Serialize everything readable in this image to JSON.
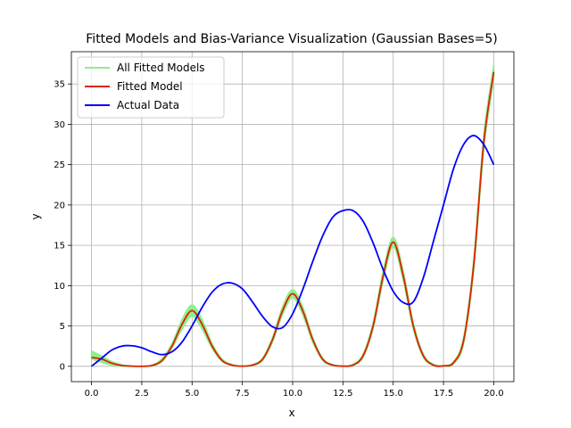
{
  "chart_data": {
    "type": "line",
    "title": "Fitted Models and Bias-Variance Visualization (Gaussian Bases=5)",
    "xlabel": "x",
    "ylabel": "y",
    "xlim": [
      -1.0,
      21.0
    ],
    "ylim": [
      -1.9,
      39.0
    ],
    "xticks": [
      0.0,
      2.5,
      5.0,
      7.5,
      10.0,
      12.5,
      15.0,
      17.5,
      20.0
    ],
    "xtick_labels": [
      "0.0",
      "2.5",
      "5.0",
      "7.5",
      "10.0",
      "12.5",
      "15.0",
      "17.5",
      "20.0"
    ],
    "yticks": [
      0,
      5,
      10,
      15,
      20,
      25,
      30,
      35
    ],
    "ytick_labels": [
      "0",
      "5",
      "10",
      "15",
      "20",
      "25",
      "30",
      "35"
    ],
    "grid": true,
    "legend_position": "top-left",
    "x": [
      0,
      0.5,
      1,
      1.5,
      2,
      2.5,
      3,
      3.5,
      4,
      4.5,
      5,
      5.5,
      6,
      6.5,
      7,
      7.5,
      8,
      8.5,
      9,
      9.5,
      10,
      10.5,
      11,
      11.5,
      12,
      12.5,
      13,
      13.5,
      14,
      14.5,
      15,
      15.5,
      16,
      16.5,
      17,
      17.5,
      18,
      18.5,
      19,
      19.5,
      20
    ],
    "series": [
      {
        "name": "All Fitted Models",
        "color": "#90ee90",
        "band_lower": [
          0.9,
          0.5,
          0.15,
          0.03,
          0.0,
          0.0,
          0.05,
          0.55,
          2.2,
          4.6,
          6.2,
          4.6,
          2.2,
          0.6,
          0.1,
          0.0,
          0.1,
          0.7,
          3.0,
          6.4,
          8.5,
          6.4,
          3.0,
          0.7,
          0.1,
          0.0,
          0.1,
          1.1,
          4.6,
          10.6,
          14.8,
          10.6,
          4.6,
          1.1,
          0.1,
          0.0,
          0.3,
          2.8,
          11.8,
          26.8,
          35.6
        ],
        "band_upper": [
          1.9,
          1.3,
          0.6,
          0.2,
          0.05,
          0.02,
          0.15,
          0.95,
          2.8,
          5.8,
          7.6,
          5.8,
          2.8,
          0.9,
          0.2,
          0.05,
          0.2,
          1.0,
          3.6,
          7.4,
          9.5,
          7.4,
          3.6,
          1.0,
          0.2,
          0.05,
          0.25,
          1.5,
          5.4,
          11.8,
          16.0,
          11.8,
          5.4,
          1.5,
          0.25,
          0.1,
          0.6,
          3.6,
          13.2,
          28.6,
          37.4
        ]
      },
      {
        "name": "Fitted Model",
        "color": "#dd2200",
        "values": [
          1.1,
          0.9,
          0.4,
          0.1,
          0.02,
          0.0,
          0.1,
          0.7,
          2.5,
          5.2,
          6.9,
          5.2,
          2.5,
          0.7,
          0.15,
          0.02,
          0.15,
          0.85,
          3.3,
          6.9,
          9.0,
          6.9,
          3.3,
          0.85,
          0.15,
          0.02,
          0.15,
          1.3,
          5.0,
          11.2,
          15.4,
          11.2,
          5.0,
          1.3,
          0.15,
          0.05,
          0.45,
          3.2,
          12.5,
          27.7,
          36.5
        ]
      },
      {
        "name": "Actual Data",
        "color": "#0000ff",
        "values": [
          0.0,
          1.0,
          2.0,
          2.5,
          2.55,
          2.3,
          1.8,
          1.45,
          1.8,
          3.0,
          5.0,
          7.3,
          9.2,
          10.2,
          10.3,
          9.6,
          8.0,
          6.2,
          4.9,
          4.8,
          6.5,
          9.5,
          13.0,
          16.2,
          18.5,
          19.3,
          19.3,
          18.0,
          15.3,
          12.0,
          9.3,
          7.9,
          8.0,
          11.0,
          15.5,
          20.0,
          24.5,
          27.5,
          28.6,
          27.5,
          25.0
        ]
      }
    ]
  }
}
